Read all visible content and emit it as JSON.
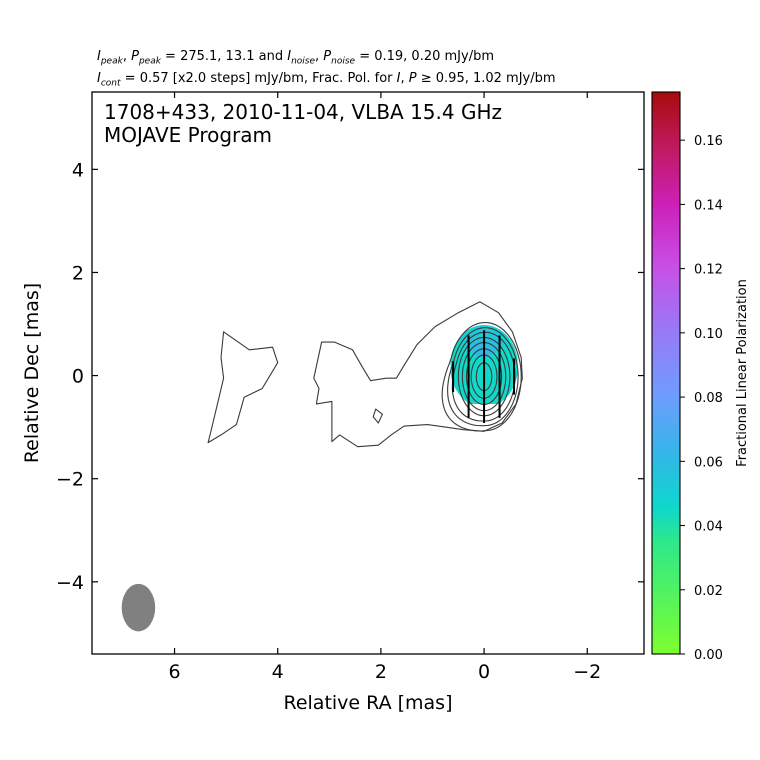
{
  "header": {
    "line1": {
      "i_peak_sym": "I",
      "i_peak_sub": "peak",
      "p_peak_sym": "P",
      "p_peak_sub": "peak",
      "peak_values": " = 275.1, 13.1 and ",
      "i_noise_sym": "I",
      "i_noise_sub": "noise",
      "p_noise_sym": "P",
      "p_noise_sub": "noise",
      "noise_values": " = 0.19, 0.20 mJy/bm"
    },
    "line2": {
      "i_cont_sym": "I",
      "i_cont_sub": "cont",
      "cont_text": " = 0.57 [x2.0 steps] mJy/bm, Frac. Pol. for ",
      "i_sym": "I",
      "p_sym": "P",
      "geq_text": " ≥ 0.95, 1.02 mJy/bm"
    }
  },
  "chart_data": {
    "type": "contour",
    "title_line1": "1708+433, 2010-11-04, VLBA 15.4 GHz",
    "title_line2": "MOJAVE Program",
    "xlabel": "Relative RA [mas]",
    "ylabel": "Relative Dec [mas]",
    "xlim": [
      7.6,
      -3.1
    ],
    "ylim": [
      -5.4,
      5.5
    ],
    "xticks": [
      6,
      4,
      2,
      0,
      -2
    ],
    "xtick_labels": [
      "6",
      "4",
      "2",
      "0",
      "−2"
    ],
    "yticks": [
      4,
      2,
      0,
      -2,
      -4
    ],
    "ytick_labels": [
      "4",
      "2",
      "0",
      "−2",
      "−4"
    ],
    "contour_base_mJy_per_beam": 0.57,
    "contour_step_factor": 2.0,
    "peak_intensity_mJy_per_beam": 275.1,
    "beam": {
      "center": [
        6.7,
        -4.5
      ],
      "major_mas": 0.92,
      "minor_mas": 0.65,
      "pa_deg": 0,
      "color": "#808080"
    },
    "core_contours": [
      {
        "level": 1,
        "points": [
          [
            0.08,
            1.43
          ],
          [
            -0.28,
            1.22
          ],
          [
            -0.55,
            0.85
          ],
          [
            -0.72,
            0.35
          ],
          [
            -0.74,
            -0.05
          ],
          [
            -0.62,
            -0.55
          ],
          [
            -0.35,
            -0.92
          ],
          [
            0.0,
            -1.08
          ],
          [
            0.4,
            -1.05
          ],
          [
            0.75,
            -1.0
          ],
          [
            1.1,
            -0.95
          ],
          [
            1.55,
            -0.98
          ],
          [
            1.8,
            -1.15
          ],
          [
            2.05,
            -1.35
          ],
          [
            2.45,
            -1.38
          ],
          [
            2.8,
            -1.15
          ],
          [
            2.95,
            -1.28
          ],
          [
            2.95,
            -0.5
          ],
          [
            3.25,
            -0.55
          ],
          [
            3.2,
            -0.25
          ],
          [
            3.3,
            -0.05
          ],
          [
            3.15,
            0.65
          ],
          [
            2.9,
            0.65
          ],
          [
            2.55,
            0.5
          ],
          [
            2.35,
            0.15
          ],
          [
            2.2,
            -0.1
          ],
          [
            1.9,
            -0.05
          ],
          [
            1.7,
            -0.05
          ],
          [
            1.55,
            0.2
          ],
          [
            1.3,
            0.6
          ],
          [
            0.95,
            0.95
          ],
          [
            0.5,
            1.22
          ],
          [
            0.08,
            1.43
          ]
        ]
      },
      {
        "level": 2,
        "center": [
          -0.02,
          -0.02
        ],
        "rx": 0.7,
        "ry": 1.05,
        "tail_to": [
          1.5,
          -0.4
        ]
      },
      {
        "level": 3,
        "center": [
          -0.02,
          -0.02
        ],
        "rx": 0.64,
        "ry": 0.95,
        "tail_to": [
          1.2,
          -0.3
        ]
      },
      {
        "level": 4,
        "center": [
          -0.02,
          -0.02
        ],
        "rx": 0.58,
        "ry": 0.86,
        "tail_to": [
          0.95,
          -0.25
        ]
      },
      {
        "level": 5,
        "center": [
          0.0,
          -0.02
        ],
        "rx": 0.5,
        "ry": 0.76
      },
      {
        "level": 6,
        "center": [
          0.0,
          -0.02
        ],
        "rx": 0.42,
        "ry": 0.66
      },
      {
        "level": 7,
        "center": [
          0.0,
          -0.02
        ],
        "rx": 0.34,
        "ry": 0.54
      },
      {
        "level": 8,
        "center": [
          0.0,
          -0.02
        ],
        "rx": 0.25,
        "ry": 0.42
      },
      {
        "level": 9,
        "center": [
          0.0,
          -0.02
        ],
        "rx": 0.15,
        "ry": 0.27
      }
    ],
    "jet_contours": [
      {
        "name": "outer-lobe",
        "points": [
          [
            5.05,
            0.85
          ],
          [
            4.55,
            0.5
          ],
          [
            4.1,
            0.55
          ],
          [
            4.0,
            0.25
          ],
          [
            4.3,
            -0.25
          ],
          [
            4.65,
            -0.42
          ],
          [
            4.8,
            -0.95
          ],
          [
            5.1,
            -1.15
          ],
          [
            5.35,
            -1.3
          ],
          [
            5.3,
            -1.1
          ],
          [
            5.05,
            -0.05
          ],
          [
            5.1,
            0.35
          ],
          [
            5.05,
            0.85
          ]
        ]
      },
      {
        "name": "small-island",
        "points": [
          [
            2.1,
            -0.65
          ],
          [
            2.15,
            -0.8
          ],
          [
            2.05,
            -0.92
          ],
          [
            1.97,
            -0.75
          ],
          [
            2.1,
            -0.65
          ]
        ]
      }
    ],
    "polarization_patch": {
      "x_range": [
        0.65,
        -0.65
      ],
      "y_range": [
        -0.55,
        0.95
      ],
      "values": [
        0.045,
        0.05,
        0.055,
        0.06,
        0.065
      ]
    },
    "evpa_ticks": [
      {
        "x": 0.6,
        "y": -0.02,
        "length_mas": 0.6
      },
      {
        "x": 0.3,
        "y": -0.02,
        "length_mas": 1.6
      },
      {
        "x": 0.0,
        "y": -0.02,
        "length_mas": 1.8
      },
      {
        "x": -0.3,
        "y": -0.02,
        "length_mas": 1.6
      },
      {
        "x": -0.58,
        "y": -0.02,
        "length_mas": 0.7
      }
    ],
    "colorbar": {
      "label": "Fractional Linear Polarization",
      "range": [
        0.0,
        0.175
      ],
      "ticks": [
        0.0,
        0.02,
        0.04,
        0.06,
        0.08,
        0.1,
        0.12,
        0.14,
        0.16
      ],
      "tick_labels": [
        "0.00",
        "0.02",
        "0.04",
        "0.06",
        "0.08",
        "0.10",
        "0.12",
        "0.14",
        "0.16"
      ],
      "color_stops": [
        [
          0.0,
          "#7dff2f"
        ],
        [
          0.2,
          "#2ee88a"
        ],
        [
          0.26,
          "#0ed8cc"
        ],
        [
          0.35,
          "#30b8e6"
        ],
        [
          0.46,
          "#6e9cff"
        ],
        [
          0.58,
          "#9a78f5"
        ],
        [
          0.69,
          "#c84fe6"
        ],
        [
          0.8,
          "#cc20b8"
        ],
        [
          0.9,
          "#c01a60"
        ],
        [
          1.0,
          "#a80c0c"
        ]
      ]
    }
  }
}
